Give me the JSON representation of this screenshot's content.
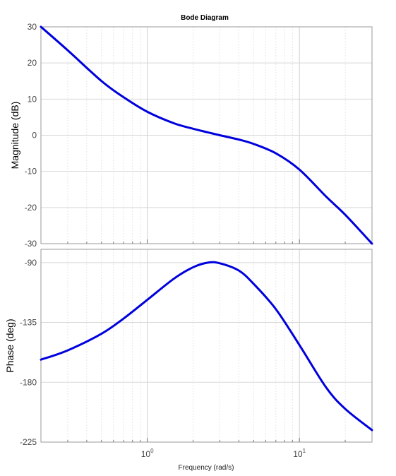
{
  "chart_data": {
    "type": "line",
    "title": "Bode Diagram",
    "xlabel": "Frequency  (rad/s)",
    "x_scale": "log",
    "xlim": [
      0.2,
      30
    ],
    "x_tick_labels": [
      {
        "value": 1,
        "base": "10",
        "exp": "0"
      },
      {
        "value": 10,
        "base": "10",
        "exp": "1"
      }
    ],
    "grid": true,
    "line_color": "#0000dd",
    "panels": [
      {
        "name": "magnitude",
        "ylabel": "Magnitude (dB)",
        "ylim": [
          -30,
          30
        ],
        "yticks": [
          "30",
          "20",
          "10",
          "0",
          "-10",
          "-20",
          "-30"
        ],
        "ytick_values": [
          30,
          20,
          10,
          0,
          -10,
          -20,
          -30
        ],
        "x": [
          0.2,
          0.3,
          0.5,
          0.7,
          1.0,
          1.5,
          2.0,
          2.5,
          3.0,
          4.0,
          5.0,
          7.0,
          10.0,
          15.0,
          20.0,
          30.0
        ],
        "y": [
          30,
          23.5,
          15,
          10.5,
          6.5,
          3.3,
          1.8,
          0.8,
          0,
          -1.2,
          -2.4,
          -5.0,
          -9.5,
          -17,
          -22,
          -30
        ]
      },
      {
        "name": "phase",
        "ylabel": "Phase (deg)",
        "ylim": [
          -225,
          -80
        ],
        "yticks": [
          "-90",
          "-135",
          "-180",
          "-225"
        ],
        "ytick_values": [
          -90,
          -135,
          -180,
          -225
        ],
        "x": [
          0.2,
          0.3,
          0.5,
          0.7,
          1.0,
          1.5,
          2.0,
          2.5,
          3.0,
          4.0,
          5.0,
          7.0,
          10.0,
          15.0,
          20.0,
          30.0
        ],
        "y": [
          -163,
          -156,
          -143.5,
          -132,
          -118,
          -102,
          -93.5,
          -90,
          -90.5,
          -96,
          -106,
          -125,
          -152,
          -184,
          -200,
          -216
        ]
      }
    ]
  }
}
